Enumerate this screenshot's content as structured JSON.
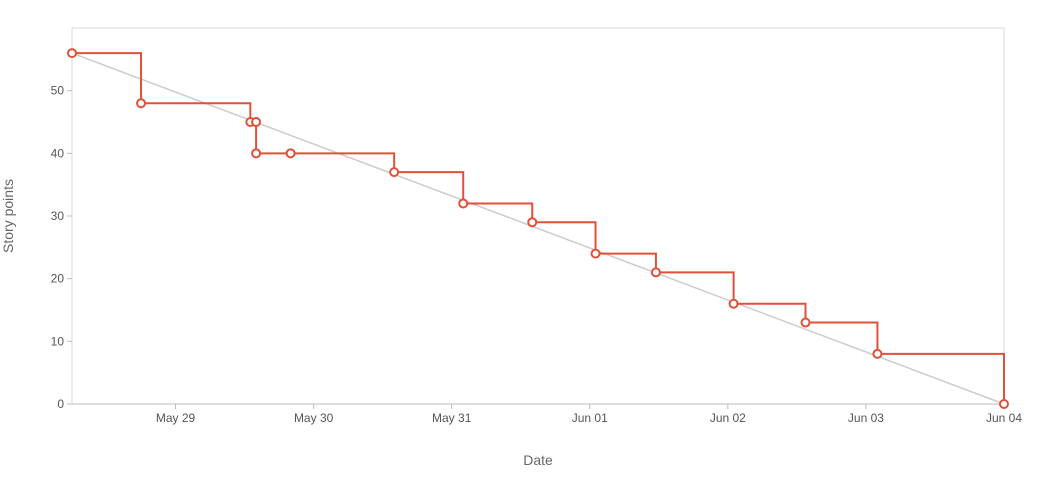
{
  "chart_data": {
    "type": "line",
    "xlabel": "Date",
    "ylabel": "Story points",
    "x_axis_kind": "date",
    "xlim": [
      "2024-05-28T06:00",
      "2024-06-04T00:00"
    ],
    "ylim": [
      0,
      60
    ],
    "grid": false,
    "legend": "none",
    "x_ticks": [
      {
        "date": "2024-05-29T00:00",
        "label": "May 29"
      },
      {
        "date": "2024-05-30T00:00",
        "label": "May 30"
      },
      {
        "date": "2024-05-31T00:00",
        "label": "May 31"
      },
      {
        "date": "2024-06-01T00:00",
        "label": "Jun 01"
      },
      {
        "date": "2024-06-02T00:00",
        "label": "Jun 02"
      },
      {
        "date": "2024-06-03T00:00",
        "label": "Jun 03"
      },
      {
        "date": "2024-06-04T00:00",
        "label": "Jun 04"
      }
    ],
    "y_ticks": [
      {
        "value": 0,
        "label": "0"
      },
      {
        "value": 10,
        "label": "10"
      },
      {
        "value": 20,
        "label": "20"
      },
      {
        "value": 30,
        "label": "30"
      },
      {
        "value": 40,
        "label": "40"
      },
      {
        "value": 50,
        "label": "50"
      }
    ],
    "series": [
      {
        "kind": "ideal",
        "color": "#cccccc",
        "points": [
          {
            "x": "2024-05-28T06:00",
            "y": 56
          },
          {
            "x": "2024-06-04T00:00",
            "y": 0
          }
        ]
      },
      {
        "kind": "actual",
        "color": "#e0513a",
        "step": true,
        "points": [
          {
            "x": "2024-05-28T06:00",
            "y": 56
          },
          {
            "x": "2024-05-28T18:00",
            "y": 48
          },
          {
            "x": "2024-05-29T13:00",
            "y": 45
          },
          {
            "x": "2024-05-29T14:00",
            "y": 45
          },
          {
            "x": "2024-05-29T14:00",
            "y": 40
          },
          {
            "x": "2024-05-29T20:00",
            "y": 40
          },
          {
            "x": "2024-05-30T14:00",
            "y": 37
          },
          {
            "x": "2024-05-31T02:00",
            "y": 32
          },
          {
            "x": "2024-05-31T14:00",
            "y": 29
          },
          {
            "x": "2024-06-01T01:00",
            "y": 24
          },
          {
            "x": "2024-06-01T11:30",
            "y": 21
          },
          {
            "x": "2024-06-02T01:00",
            "y": 16
          },
          {
            "x": "2024-06-02T13:30",
            "y": 13
          },
          {
            "x": "2024-06-03T02:00",
            "y": 8
          },
          {
            "x": "2024-06-04T00:00",
            "y": 0
          }
        ]
      }
    ]
  }
}
